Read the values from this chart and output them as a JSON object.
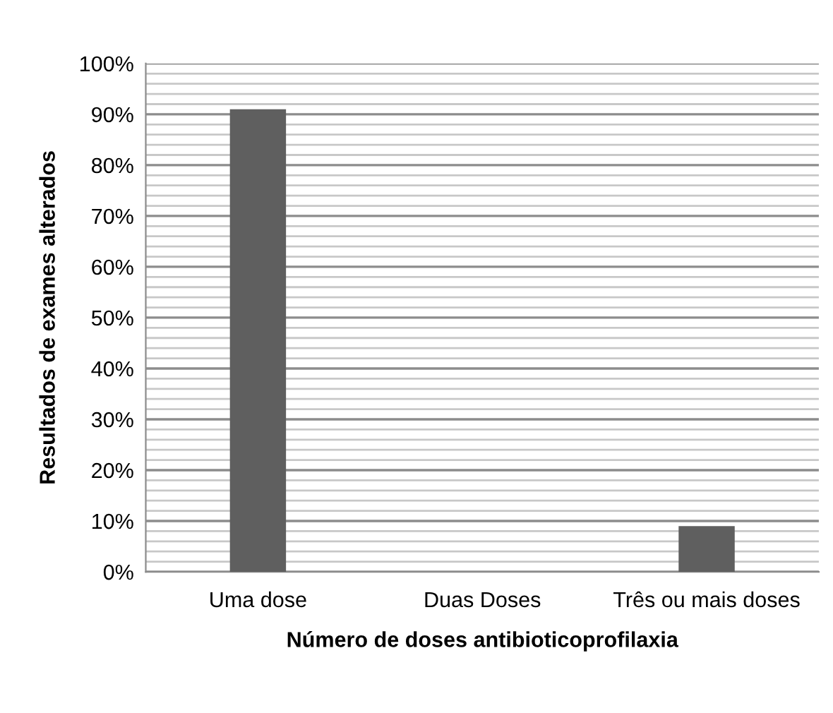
{
  "chart_data": {
    "type": "bar",
    "categories": [
      "Uma dose",
      "Duas Doses",
      "Três ou mais doses"
    ],
    "values": [
      91,
      0,
      9
    ],
    "color": "#5f5f5f",
    "xlabel": "Número de doses antibioticoprofilaxia",
    "ylabel": "Resultados de exames alterados",
    "ylim": [
      0,
      100
    ],
    "yticks": [
      {
        "value": 0,
        "label": "0%"
      },
      {
        "value": 2,
        "label": null
      },
      {
        "value": 4,
        "label": null
      },
      {
        "value": 6,
        "label": null
      },
      {
        "value": 8,
        "label": null
      },
      {
        "value": 10,
        "label": "10%"
      },
      {
        "value": 12,
        "label": null
      },
      {
        "value": 14,
        "label": null
      },
      {
        "value": 16,
        "label": null
      },
      {
        "value": 18,
        "label": null
      },
      {
        "value": 20,
        "label": "20%"
      },
      {
        "value": 22,
        "label": null
      },
      {
        "value": 24,
        "label": null
      },
      {
        "value": 26,
        "label": null
      },
      {
        "value": 28,
        "label": null
      },
      {
        "value": 30,
        "label": "30%"
      },
      {
        "value": 32,
        "label": null
      },
      {
        "value": 34,
        "label": null
      },
      {
        "value": 36,
        "label": null
      },
      {
        "value": 38,
        "label": null
      },
      {
        "value": 40,
        "label": "40%"
      },
      {
        "value": 42,
        "label": null
      },
      {
        "value": 44,
        "label": null
      },
      {
        "value": 46,
        "label": null
      },
      {
        "value": 48,
        "label": null
      },
      {
        "value": 50,
        "label": "50%"
      },
      {
        "value": 52,
        "label": null
      },
      {
        "value": 54,
        "label": null
      },
      {
        "value": 56,
        "label": null
      },
      {
        "value": 58,
        "label": null
      },
      {
        "value": 60,
        "label": "60%"
      },
      {
        "value": 62,
        "label": null
      },
      {
        "value": 64,
        "label": null
      },
      {
        "value": 66,
        "label": null
      },
      {
        "value": 68,
        "label": null
      },
      {
        "value": 70,
        "label": "70%"
      },
      {
        "value": 72,
        "label": null
      },
      {
        "value": 74,
        "label": null
      },
      {
        "value": 76,
        "label": null
      },
      {
        "value": 78,
        "label": null
      },
      {
        "value": 80,
        "label": "80%"
      },
      {
        "value": 82,
        "label": null
      },
      {
        "value": 84,
        "label": null
      },
      {
        "value": 86,
        "label": null
      },
      {
        "value": 88,
        "label": null
      },
      {
        "value": 90,
        "label": "90%"
      },
      {
        "value": 92,
        "label": null
      },
      {
        "value": 94,
        "label": null
      },
      {
        "value": 96,
        "label": null
      },
      {
        "value": 98,
        "label": null
      },
      {
        "value": 100,
        "label": "100%"
      }
    ],
    "grid": "y",
    "legend": false
  }
}
